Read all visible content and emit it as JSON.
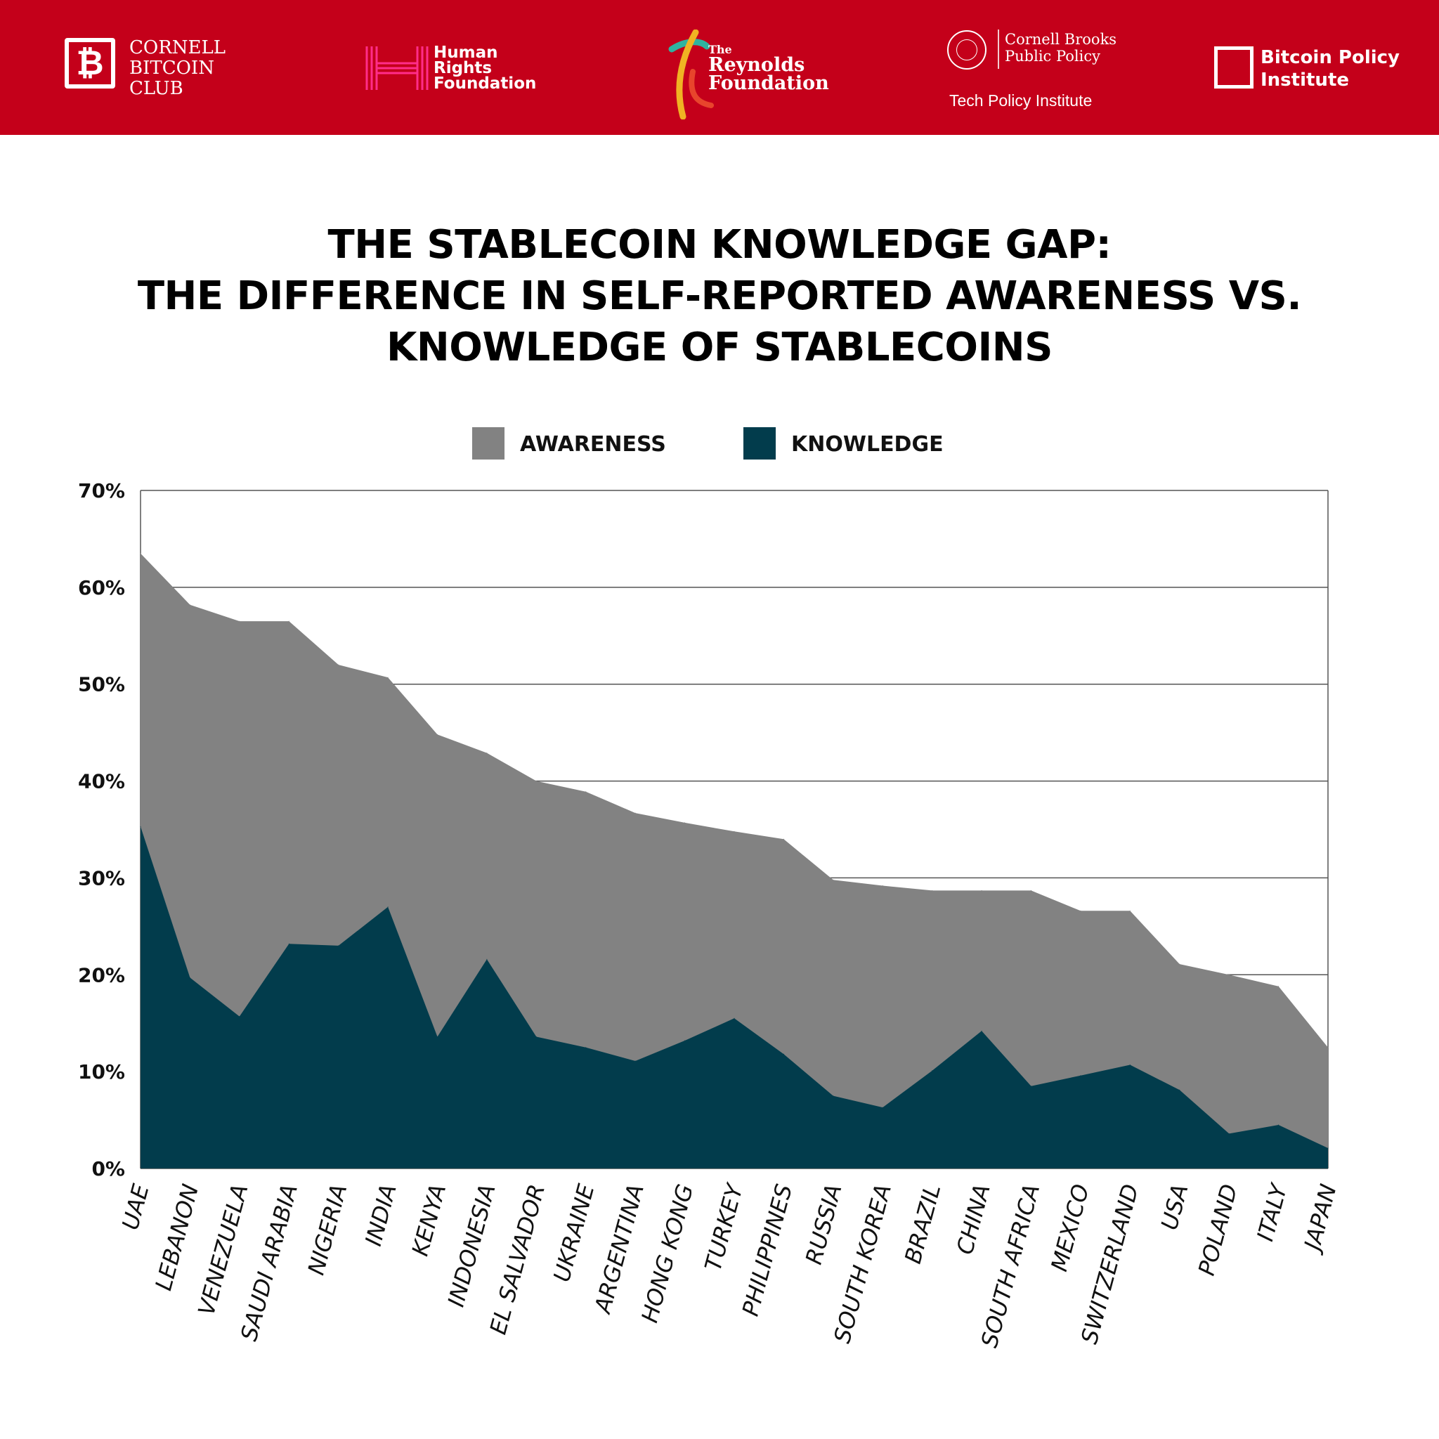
{
  "header": {
    "logos": [
      {
        "name": [
          "CORNELL",
          "BITCOIN",
          "CLUB"
        ],
        "icon": "bitcoin-icon"
      },
      {
        "name": [
          "Human",
          "Rights",
          "Foundation"
        ],
        "icon": "hrf-icon"
      },
      {
        "prefix": "The",
        "name": [
          "Reynolds",
          "Foundation"
        ],
        "icon": "reynolds-icon"
      },
      {
        "name": [
          "Cornell Brooks",
          "Public Policy"
        ],
        "sub": "Tech Policy Institute",
        "icon": "cornell-seal-icon"
      },
      {
        "name": [
          "Bitcoin Policy",
          "Institute"
        ],
        "icon": "square-icon"
      }
    ],
    "background": "#c4001a"
  },
  "title": {
    "line1": "THE STABLECOIN KNOWLEDGE GAP:",
    "line2": "THE DIFFERENCE IN SELF-REPORTED AWARENESS VS.",
    "line3": "KNOWLEDGE OF STABLECOINS"
  },
  "chart_data": {
    "type": "area",
    "title": "THE STABLECOIN KNOWLEDGE GAP: THE DIFFERENCE IN SELF-REPORTED AWARENESS VS. KNOWLEDGE OF STABLECOINS",
    "categories": [
      "UAE",
      "LEBANON",
      "VENEZUELA",
      "SAUDI ARABIA",
      "NIGERIA",
      "INDIA",
      "KENYA",
      "INDONESIA",
      "EL SALVADOR",
      "UKRAINE",
      "ARGENTINA",
      "HONG KONG",
      "TURKEY",
      "PHILIPPINES",
      "RUSSIA",
      "SOUTH KOREA",
      "BRAZIL",
      "CHINA",
      "SOUTH AFRICA",
      "MEXICO",
      "SWITZERLAND",
      "USA",
      "POLAND",
      "ITALY",
      "JAPAN"
    ],
    "series": [
      {
        "name": "AWARENESS",
        "color": "#828282",
        "values": [
          63.5,
          58.2,
          56.5,
          56.5,
          52,
          50.7,
          44.8,
          42.9,
          40,
          38.9,
          36.7,
          35.7,
          34.8,
          34,
          29.8,
          29.2,
          28.7,
          28.7,
          28.7,
          26.6,
          26.6,
          21.1,
          20,
          18.8,
          12.5
        ]
      },
      {
        "name": "KNOWLEDGE",
        "color": "#023c4c",
        "values": [
          35.3,
          19.7,
          15.7,
          23.2,
          23,
          27,
          13.6,
          21.6,
          13.6,
          12.5,
          11.1,
          13.2,
          15.5,
          11.8,
          7.5,
          6.3,
          10.1,
          14.2,
          8.5,
          9.6,
          10.7,
          8.1,
          3.6,
          4.5,
          2.1
        ]
      }
    ],
    "y_ticks": [
      "0%",
      "10%",
      "20%",
      "30%",
      "40%",
      "50%",
      "60%",
      "70%"
    ],
    "ylim": [
      0,
      70
    ],
    "xlabel": "",
    "ylabel": "",
    "grid": true,
    "legend_position": "top-center"
  }
}
